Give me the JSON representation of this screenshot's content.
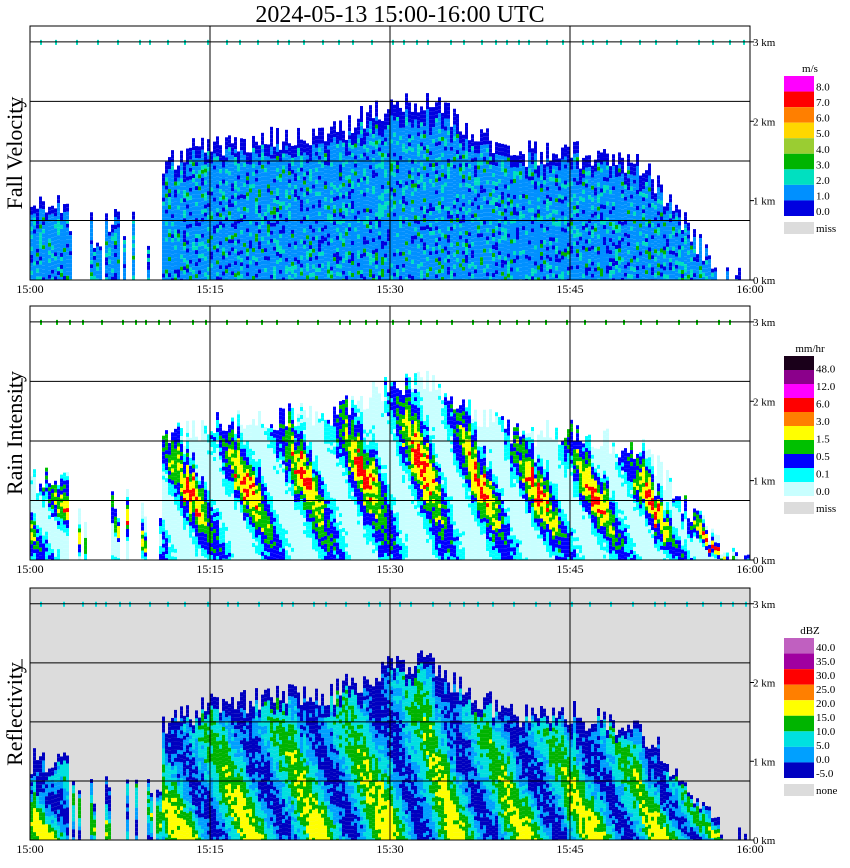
{
  "title": "2024-05-13   15:00-16:00 UTC",
  "x_ticks": [
    "15:00",
    "15:15",
    "15:30",
    "15:45",
    "16:00"
  ],
  "height_ticks": [
    "0 km",
    "1 km",
    "2 km",
    "3 km"
  ],
  "chart_data": [
    {
      "type": "heatmap",
      "name": "fall-velocity",
      "ylabel": "Fall Velocity",
      "xlabel": "",
      "x_range": [
        "15:00",
        "16:00"
      ],
      "y_range_km": [
        0,
        3.2
      ],
      "colorbar": {
        "unit": "m/s",
        "levels": [
          "8.0",
          "7.0",
          "6.0",
          "5.0",
          "4.0",
          "3.0",
          "2.0",
          "1.0",
          "0.0"
        ],
        "colors": [
          "#ff00ff",
          "#ff0000",
          "#ff7f00",
          "#ffd700",
          "#9acd32",
          "#00b400",
          "#00e0c0",
          "#0090ff",
          "#0000e0"
        ],
        "missing_label": "miss",
        "missing_color": "#dcdcdc"
      },
      "echo_top_km": [
        [
          0,
          1.0
        ],
        [
          3,
          1.0
        ],
        [
          8,
          0.9
        ],
        [
          11,
          1.5
        ],
        [
          15,
          1.7
        ],
        [
          20,
          1.8
        ],
        [
          25,
          1.85
        ],
        [
          30,
          2.2
        ],
        [
          33,
          2.3
        ],
        [
          36,
          1.9
        ],
        [
          40,
          1.6
        ],
        [
          45,
          1.6
        ],
        [
          48,
          1.5
        ],
        [
          51,
          1.4
        ],
        [
          54,
          0.8
        ],
        [
          58,
          0.0
        ]
      ],
      "notes": [
        "echo present mainly 15:11-15:58 below 2.3 km",
        "dominant fall velocity 1.0-2.0 m/s"
      ]
    },
    {
      "type": "heatmap",
      "name": "rain-intensity",
      "ylabel": "Rain Intensity",
      "xlabel": "",
      "x_range": [
        "15:00",
        "16:00"
      ],
      "y_range_km": [
        0,
        3.2
      ],
      "colorbar": {
        "unit": "mm/hr",
        "levels": [
          "48.0",
          "12.0",
          "6.0",
          "3.0",
          "1.5",
          "0.5",
          "0.1",
          "0.0"
        ],
        "colors": [
          "#1a001a",
          "#8b008b",
          "#ff00ff",
          "#ff0000",
          "#ff7f00",
          "#ffff00",
          "#00c000",
          "#0000ff",
          "#00ffff",
          "#c8ffff"
        ],
        "missing_label": "miss",
        "missing_color": "#dcdcdc"
      },
      "notes": [
        "peak intensity 3.0-6.0 mm/hr near 15:32 around 1.0-2.0 km"
      ]
    },
    {
      "type": "heatmap",
      "name": "reflectivity",
      "ylabel": "Reflectivity",
      "xlabel": "",
      "x_range": [
        "15:00",
        "16:00"
      ],
      "y_range_km": [
        0,
        3.2
      ],
      "colorbar": {
        "unit": "dBZ",
        "levels": [
          "40.0",
          "35.0",
          "30.0",
          "25.0",
          "20.0",
          "15.0",
          "10.0",
          "5.0",
          "0.0",
          "-5.0"
        ],
        "colors": [
          "#c060c0",
          "#a000a0",
          "#ff0000",
          "#ff7f00",
          "#ffff00",
          "#00b400",
          "#00e0e0",
          "#00a0ff",
          "#0000c0"
        ],
        "missing_label": "none",
        "missing_color": "#dcdcdc"
      },
      "notes": [
        "maximum 20-25 dBZ near 15:31-15:33 around 1.0-2.0 km",
        "background (no echo) shown in grey"
      ]
    }
  ]
}
